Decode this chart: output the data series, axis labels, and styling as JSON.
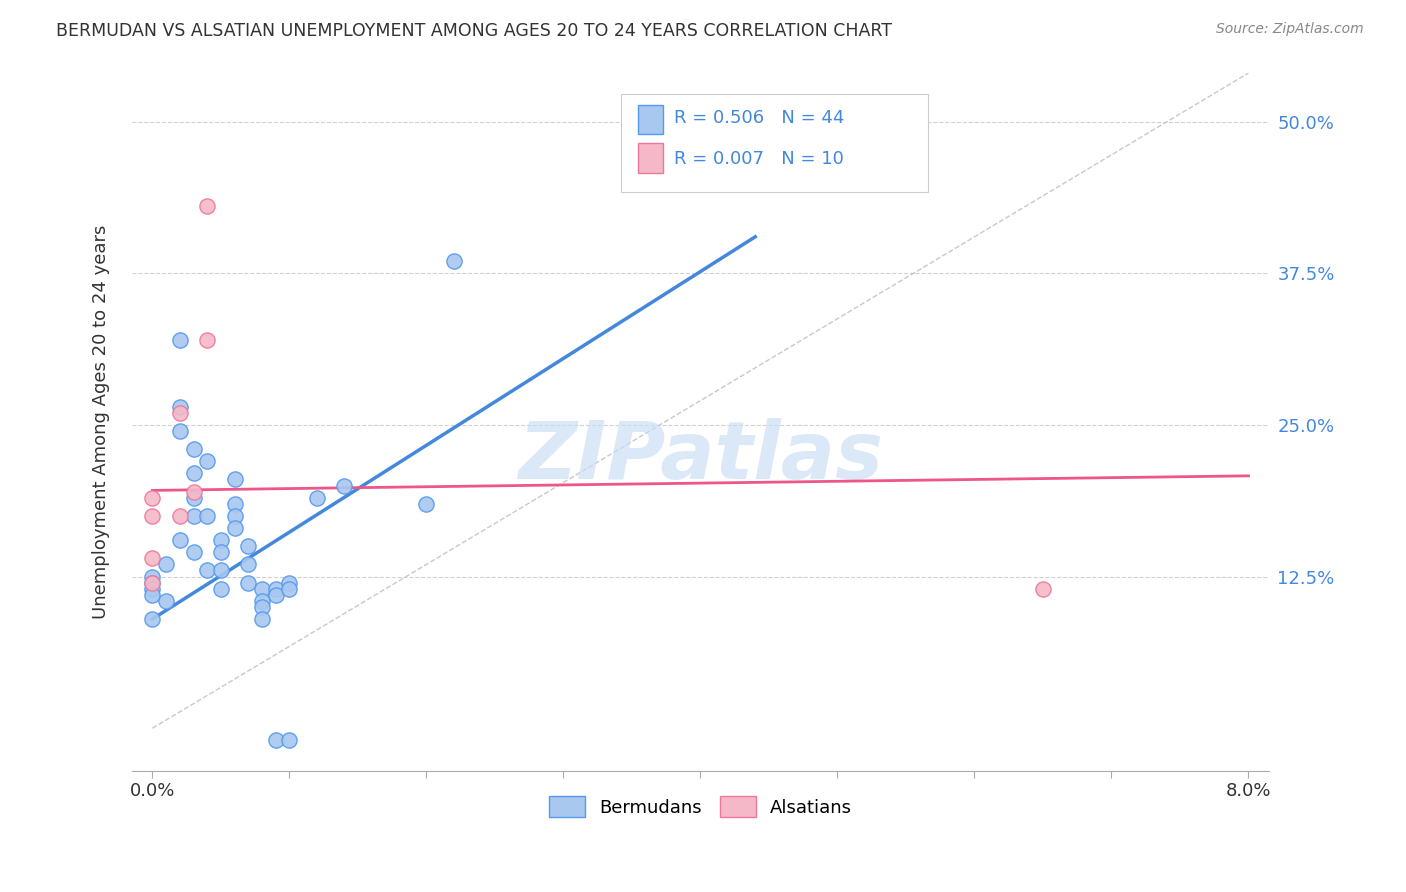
{
  "title": "BERMUDAN VS ALSATIAN UNEMPLOYMENT AMONG AGES 20 TO 24 YEARS CORRELATION CHART",
  "source": "Source: ZipAtlas.com",
  "ylabel": "Unemployment Among Ages 20 to 24 years",
  "xlim": [
    -0.15,
    8.15
  ],
  "ylim": [
    -3.5,
    54.0
  ],
  "bermuda_R": 0.506,
  "bermuda_N": 44,
  "alsatian_R": 0.007,
  "alsatian_N": 10,
  "bermuda_color": "#a8c8f0",
  "bermuda_edge_color": "#5599ee",
  "bermuda_line_color": "#4488dd",
  "alsatian_color": "#f5b8c8",
  "alsatian_edge_color": "#ee7799",
  "alsatian_line_color": "#ee5588",
  "ref_line_color": "#bbbbbb",
  "watermark": "ZIPatlas",
  "watermark_color": "#c8ddf5",
  "background_color": "#ffffff",
  "grid_color": "#cccccc",
  "title_color": "#333333",
  "label_color": "#4488dd",
  "right_tick_color": "#4488dd",
  "bermuda_x": [
    0.0,
    0.0,
    0.0,
    0.0,
    0.0,
    0.1,
    0.1,
    0.2,
    0.2,
    0.2,
    0.2,
    0.3,
    0.3,
    0.3,
    0.3,
    0.3,
    0.4,
    0.4,
    0.4,
    0.5,
    0.5,
    0.5,
    0.5,
    0.6,
    0.6,
    0.6,
    0.6,
    0.7,
    0.7,
    0.7,
    0.8,
    0.8,
    0.8,
    0.8,
    0.9,
    0.9,
    0.9,
    1.0,
    1.0,
    1.0,
    1.2,
    1.4,
    2.0,
    2.2
  ],
  "bermuda_y": [
    12.5,
    12.0,
    11.5,
    11.0,
    9.0,
    10.5,
    13.5,
    32.0,
    26.5,
    24.5,
    15.5,
    23.0,
    21.0,
    19.0,
    17.5,
    14.5,
    22.0,
    17.5,
    13.0,
    15.5,
    14.5,
    13.0,
    11.5,
    20.5,
    18.5,
    17.5,
    16.5,
    15.0,
    13.5,
    12.0,
    11.5,
    10.5,
    10.0,
    9.0,
    11.5,
    11.0,
    -1.0,
    12.0,
    11.5,
    -1.0,
    19.0,
    20.0,
    18.5,
    38.5
  ],
  "alsatian_x": [
    0.0,
    0.0,
    0.0,
    0.0,
    0.2,
    0.2,
    0.3,
    0.4,
    0.4,
    6.5
  ],
  "alsatian_y": [
    19.0,
    17.5,
    14.0,
    12.0,
    26.0,
    17.5,
    19.5,
    43.0,
    32.0,
    11.5
  ],
  "bermuda_trend_x": [
    0.0,
    4.4
  ],
  "bermuda_trend_y": [
    9.0,
    40.5
  ],
  "alsatian_trend_x": [
    0.0,
    8.0
  ],
  "alsatian_trend_y": [
    19.6,
    20.8
  ],
  "ref_line_x": [
    0.0,
    8.0
  ],
  "ref_line_y": [
    0.0,
    54.0
  ],
  "ytick_positions": [
    12.5,
    25.0,
    37.5,
    50.0
  ],
  "ytick_labels": [
    "12.5%",
    "25.0%",
    "37.5%",
    "50.0%"
  ]
}
